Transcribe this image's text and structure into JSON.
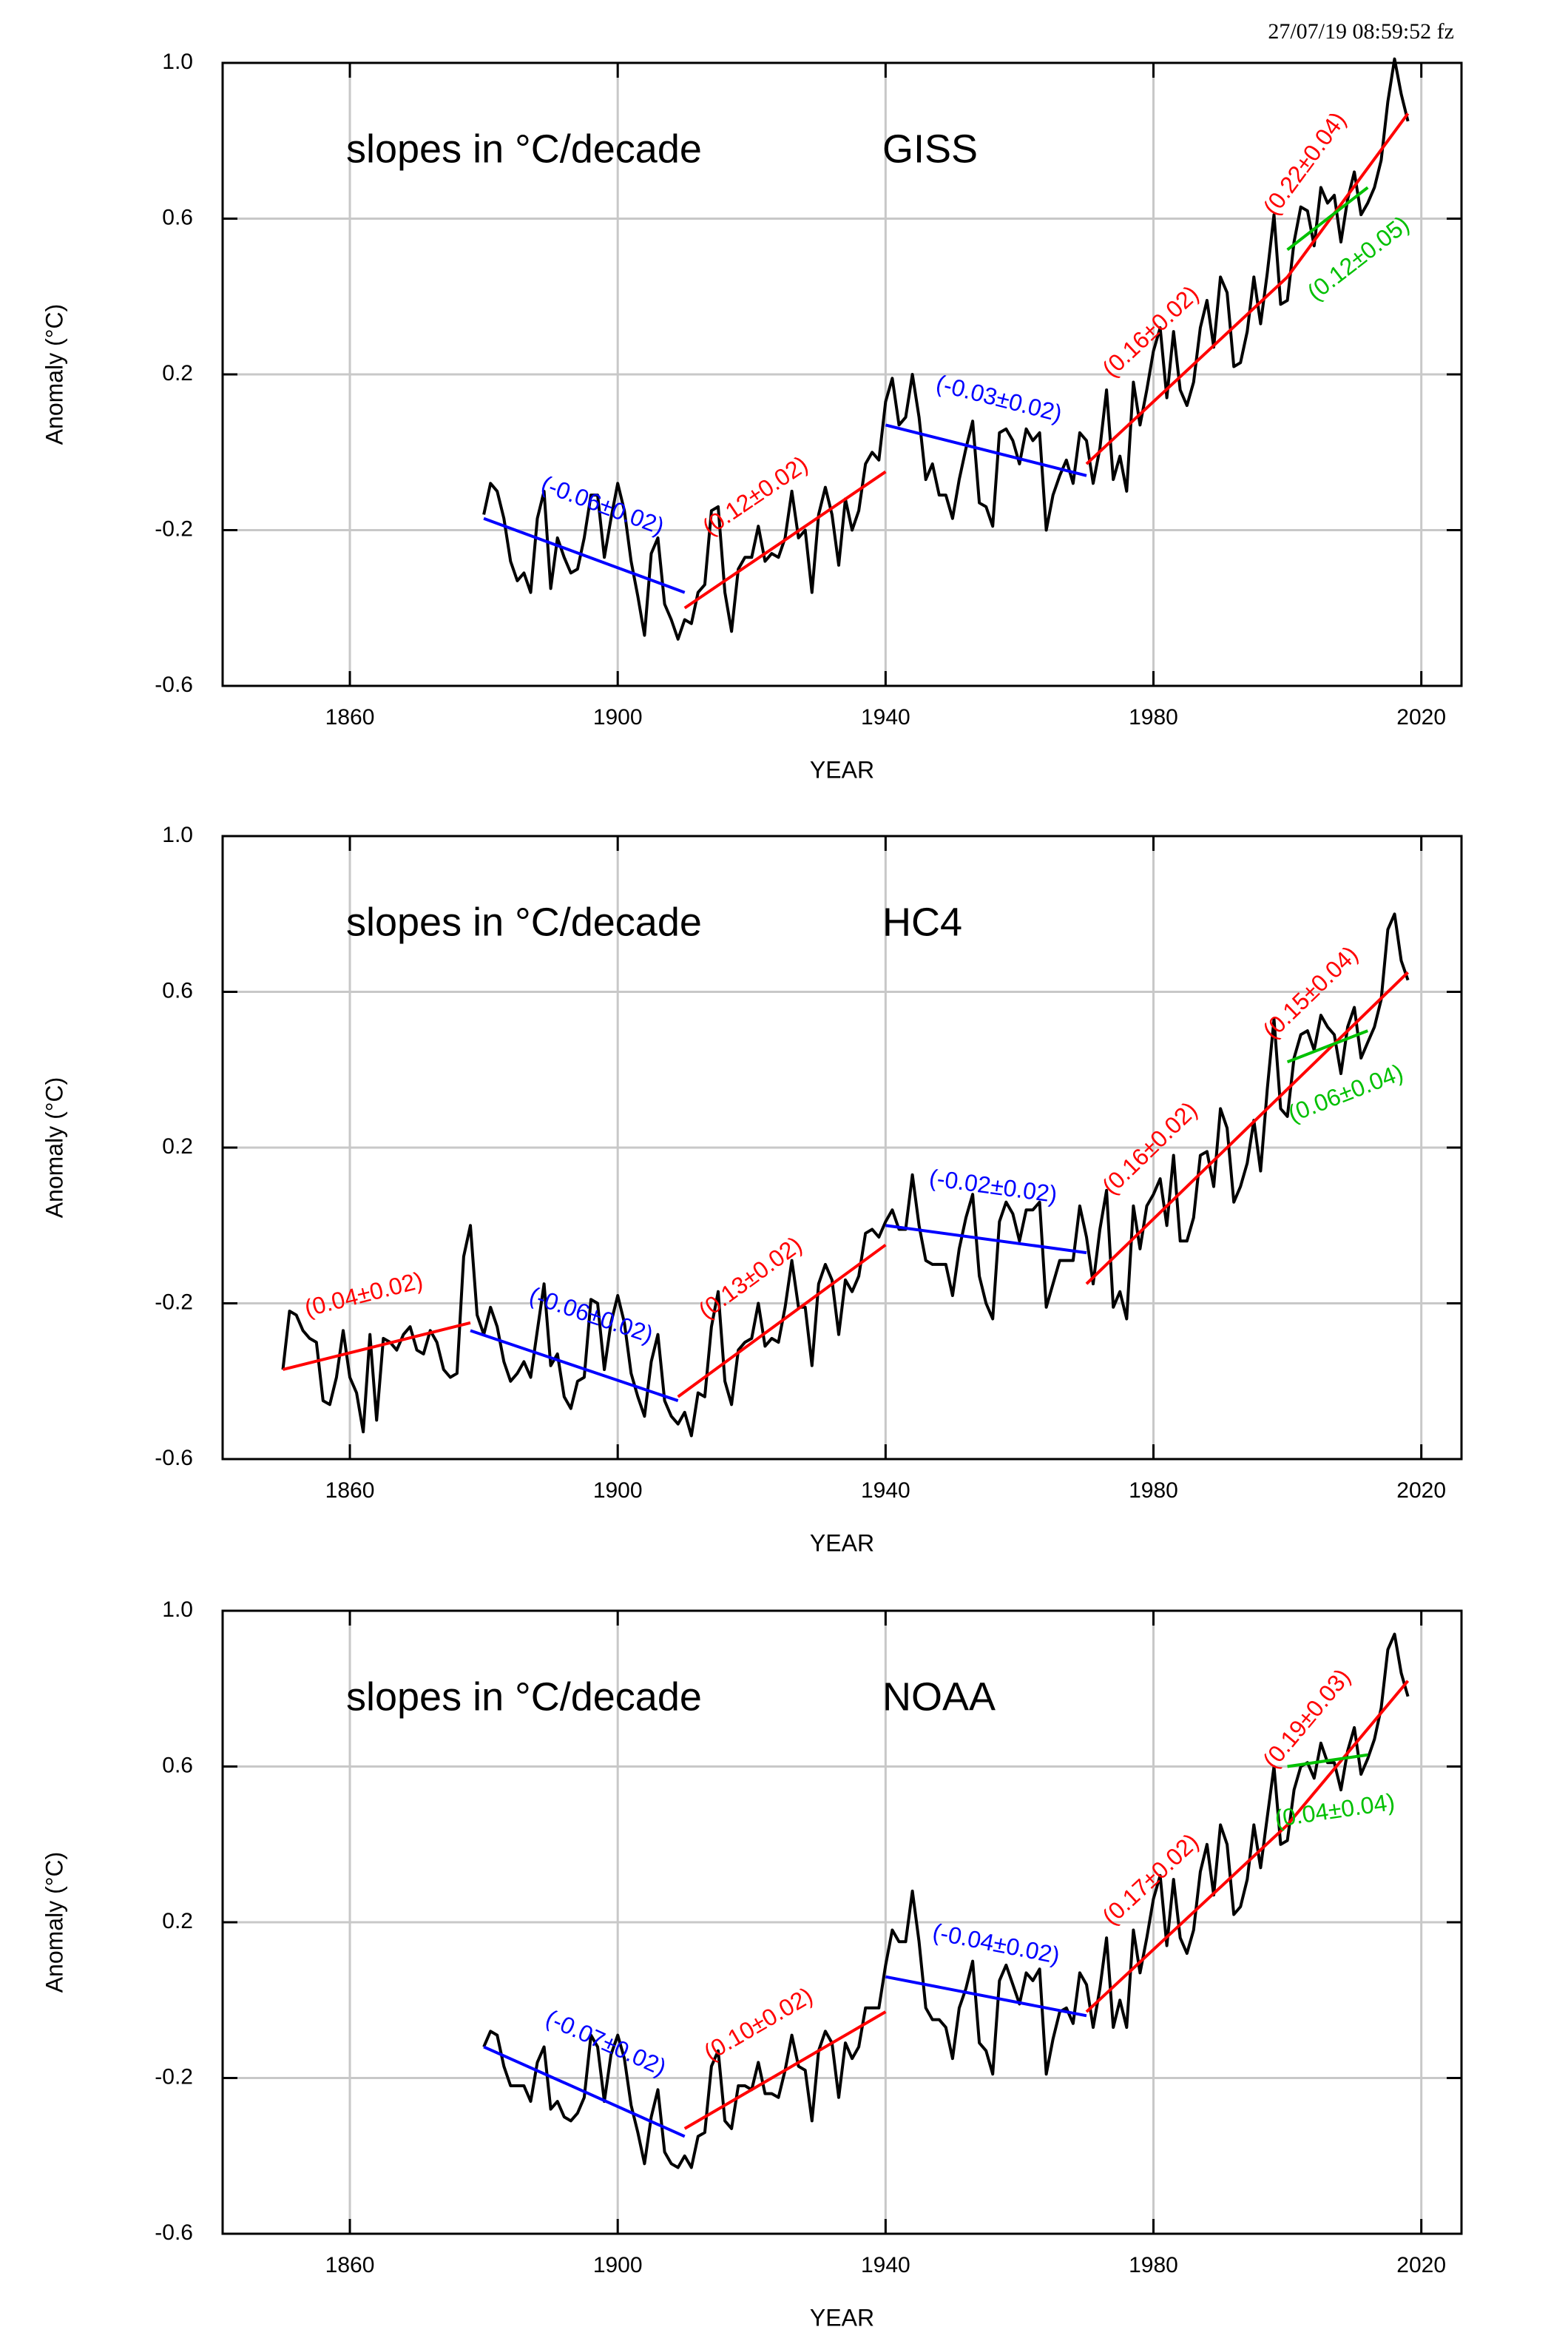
{
  "timestamp": "27/07/19  08:59:52 fz",
  "chart_data": [
    {
      "type": "line",
      "annotation": "slopes in °C/decade",
      "title": "GISS",
      "xlabel": "YEAR",
      "ylabel": "Anomaly (°C)",
      "xlim": [
        1841,
        2026
      ],
      "ylim": [
        -0.6,
        1.0
      ],
      "xticks": [
        1860,
        1900,
        1940,
        1980,
        2020
      ],
      "yticks": [
        -0.6,
        -0.2,
        0.2,
        0.6,
        {
          "value": 1,
          "label": "1.0"
        }
      ],
      "grid": true,
      "color": "#000000",
      "x": [
        1880,
        1881,
        1882,
        1883,
        1884,
        1885,
        1886,
        1887,
        1888,
        1889,
        1890,
        1891,
        1892,
        1893,
        1894,
        1895,
        1896,
        1897,
        1898,
        1899,
        1900,
        1901,
        1902,
        1903,
        1904,
        1905,
        1906,
        1907,
        1908,
        1909,
        1910,
        1911,
        1912,
        1913,
        1914,
        1915,
        1916,
        1917,
        1918,
        1919,
        1920,
        1921,
        1922,
        1923,
        1924,
        1925,
        1926,
        1927,
        1928,
        1929,
        1930,
        1931,
        1932,
        1933,
        1934,
        1935,
        1936,
        1937,
        1938,
        1939,
        1940,
        1941,
        1942,
        1943,
        1944,
        1945,
        1946,
        1947,
        1948,
        1949,
        1950,
        1951,
        1952,
        1953,
        1954,
        1955,
        1956,
        1957,
        1958,
        1959,
        1960,
        1961,
        1962,
        1963,
        1964,
        1965,
        1966,
        1967,
        1968,
        1969,
        1970,
        1971,
        1972,
        1973,
        1974,
        1975,
        1976,
        1977,
        1978,
        1979,
        1980,
        1981,
        1982,
        1983,
        1984,
        1985,
        1986,
        1987,
        1988,
        1989,
        1990,
        1991,
        1992,
        1993,
        1994,
        1995,
        1996,
        1997,
        1998,
        1999,
        2000,
        2001,
        2002,
        2003,
        2004,
        2005,
        2006,
        2007,
        2008,
        2009,
        2010,
        2011,
        2012,
        2013,
        2014,
        2015,
        2016,
        2017,
        2018
      ],
      "values": [
        -0.16,
        -0.08,
        -0.1,
        -0.17,
        -0.28,
        -0.33,
        -0.31,
        -0.36,
        -0.17,
        -0.1,
        -0.35,
        -0.22,
        -0.27,
        -0.31,
        -0.3,
        -0.22,
        -0.11,
        -0.11,
        -0.27,
        -0.17,
        -0.08,
        -0.15,
        -0.28,
        -0.37,
        -0.47,
        -0.26,
        -0.22,
        -0.39,
        -0.43,
        -0.48,
        -0.43,
        -0.44,
        -0.36,
        -0.34,
        -0.15,
        -0.14,
        -0.36,
        -0.46,
        -0.3,
        -0.27,
        -0.27,
        -0.19,
        -0.28,
        -0.26,
        -0.27,
        -0.22,
        -0.1,
        -0.22,
        -0.2,
        -0.36,
        -0.16,
        -0.09,
        -0.16,
        -0.29,
        -0.12,
        -0.2,
        -0.15,
        -0.03,
        0.0,
        -0.02,
        0.13,
        0.19,
        0.07,
        0.09,
        0.2,
        0.09,
        -0.07,
        -0.03,
        -0.11,
        -0.11,
        -0.17,
        -0.07,
        0.01,
        0.08,
        -0.13,
        -0.14,
        -0.19,
        0.05,
        0.06,
        0.03,
        -0.03,
        0.06,
        0.03,
        0.05,
        -0.2,
        -0.11,
        -0.06,
        -0.02,
        -0.08,
        0.05,
        0.03,
        -0.08,
        0.01,
        0.16,
        -0.07,
        -0.01,
        -0.1,
        0.18,
        0.07,
        0.16,
        0.26,
        0.32,
        0.14,
        0.31,
        0.16,
        0.12,
        0.18,
        0.32,
        0.39,
        0.27,
        0.45,
        0.41,
        0.22,
        0.23,
        0.31,
        0.45,
        0.33,
        0.46,
        0.61,
        0.38,
        0.39,
        0.54,
        0.63,
        0.62,
        0.53,
        0.68,
        0.64,
        0.66,
        0.54,
        0.65,
        0.72,
        0.61,
        0.64,
        0.68,
        0.75,
        0.9,
        1.01,
        0.92,
        0.85
      ],
      "trends": [
        {
          "label": "(-0.06±0.02)",
          "color": "#0000ff",
          "x": [
            1880,
            1910
          ],
          "values": [
            -0.17,
            -0.36
          ]
        },
        {
          "label": "(0.12±0.02)",
          "color": "#ff0000",
          "x": [
            1910,
            1940
          ],
          "values": [
            -0.4,
            -0.05
          ]
        },
        {
          "label": "(-0.03±0.02)",
          "color": "#0000ff",
          "x": [
            1940,
            1970
          ],
          "values": [
            0.07,
            -0.06
          ]
        },
        {
          "label": "(0.16±0.02)",
          "color": "#ff0000",
          "x": [
            1970,
            2000
          ],
          "values": [
            -0.03,
            0.45
          ]
        },
        {
          "label": "(0.22±0.04)",
          "color": "#ff0000",
          "x": [
            2000,
            2018
          ],
          "values": [
            0.45,
            0.87
          ]
        },
        {
          "label": "(0.12±0.05)",
          "color": "#00c000",
          "x": [
            2000,
            2012
          ],
          "values": [
            0.52,
            0.68
          ]
        }
      ]
    },
    {
      "type": "line",
      "annotation": "slopes in °C/decade",
      "title": "HC4",
      "xlabel": "YEAR",
      "ylabel": "Anomaly (°C)",
      "xlim": [
        1841,
        2026
      ],
      "ylim": [
        -0.6,
        1.0
      ],
      "xticks": [
        1860,
        1900,
        1940,
        1980,
        2020
      ],
      "yticks": [
        -0.6,
        -0.2,
        0.2,
        0.6,
        {
          "value": 1,
          "label": "1.0"
        }
      ],
      "grid": true,
      "color": "#000000",
      "x": [
        1850,
        1851,
        1852,
        1853,
        1854,
        1855,
        1856,
        1857,
        1858,
        1859,
        1860,
        1861,
        1862,
        1863,
        1864,
        1865,
        1866,
        1867,
        1868,
        1869,
        1870,
        1871,
        1872,
        1873,
        1874,
        1875,
        1876,
        1877,
        1878,
        1879,
        1880,
        1881,
        1882,
        1883,
        1884,
        1885,
        1886,
        1887,
        1888,
        1889,
        1890,
        1891,
        1892,
        1893,
        1894,
        1895,
        1896,
        1897,
        1898,
        1899,
        1900,
        1901,
        1902,
        1903,
        1904,
        1905,
        1906,
        1907,
        1908,
        1909,
        1910,
        1911,
        1912,
        1913,
        1914,
        1915,
        1916,
        1917,
        1918,
        1919,
        1920,
        1921,
        1922,
        1923,
        1924,
        1925,
        1926,
        1927,
        1928,
        1929,
        1930,
        1931,
        1932,
        1933,
        1934,
        1935,
        1936,
        1937,
        1938,
        1939,
        1940,
        1941,
        1942,
        1943,
        1944,
        1945,
        1946,
        1947,
        1948,
        1949,
        1950,
        1951,
        1952,
        1953,
        1954,
        1955,
        1956,
        1957,
        1958,
        1959,
        1960,
        1961,
        1962,
        1963,
        1964,
        1965,
        1966,
        1967,
        1968,
        1969,
        1970,
        1971,
        1972,
        1973,
        1974,
        1975,
        1976,
        1977,
        1978,
        1979,
        1980,
        1981,
        1982,
        1983,
        1984,
        1985,
        1986,
        1987,
        1988,
        1989,
        1990,
        1991,
        1992,
        1993,
        1994,
        1995,
        1996,
        1997,
        1998,
        1999,
        2000,
        2001,
        2002,
        2003,
        2004,
        2005,
        2006,
        2007,
        2008,
        2009,
        2010,
        2011,
        2012,
        2013,
        2014,
        2015,
        2016,
        2017,
        2018
      ],
      "values": [
        -0.37,
        -0.22,
        -0.23,
        -0.27,
        -0.29,
        -0.3,
        -0.45,
        -0.46,
        -0.39,
        -0.27,
        -0.39,
        -0.43,
        -0.53,
        -0.28,
        -0.5,
        -0.29,
        -0.3,
        -0.32,
        -0.28,
        -0.26,
        -0.32,
        -0.33,
        -0.27,
        -0.3,
        -0.37,
        -0.39,
        -0.38,
        -0.08,
        0.0,
        -0.23,
        -0.28,
        -0.21,
        -0.26,
        -0.35,
        -0.4,
        -0.38,
        -0.35,
        -0.39,
        -0.27,
        -0.15,
        -0.36,
        -0.33,
        -0.44,
        -0.47,
        -0.4,
        -0.39,
        -0.19,
        -0.2,
        -0.37,
        -0.25,
        -0.18,
        -0.25,
        -0.38,
        -0.44,
        -0.49,
        -0.35,
        -0.28,
        -0.45,
        -0.49,
        -0.51,
        -0.48,
        -0.54,
        -0.43,
        -0.44,
        -0.26,
        -0.17,
        -0.4,
        -0.46,
        -0.32,
        -0.3,
        -0.29,
        -0.2,
        -0.31,
        -0.29,
        -0.3,
        -0.21,
        -0.09,
        -0.21,
        -0.21,
        -0.36,
        -0.15,
        -0.1,
        -0.14,
        -0.28,
        -0.14,
        -0.17,
        -0.13,
        -0.02,
        -0.01,
        -0.03,
        0.01,
        0.04,
        -0.01,
        -0.01,
        0.13,
        0.0,
        -0.09,
        -0.1,
        -0.1,
        -0.1,
        -0.18,
        -0.06,
        0.02,
        0.08,
        -0.13,
        -0.2,
        -0.24,
        0.01,
        0.06,
        0.03,
        -0.04,
        0.04,
        0.04,
        0.06,
        -0.21,
        -0.15,
        -0.09,
        -0.09,
        -0.09,
        0.05,
        -0.03,
        -0.15,
        -0.01,
        0.09,
        -0.21,
        -0.17,
        -0.24,
        0.05,
        -0.06,
        0.05,
        0.08,
        0.12,
        0.0,
        0.18,
        -0.04,
        -0.04,
        0.02,
        0.18,
        0.19,
        0.1,
        0.3,
        0.25,
        0.06,
        0.1,
        0.16,
        0.27,
        0.14,
        0.35,
        0.53,
        0.3,
        0.28,
        0.43,
        0.49,
        0.5,
        0.45,
        0.54,
        0.51,
        0.49,
        0.39,
        0.51,
        0.56,
        0.43,
        0.47,
        0.51,
        0.58,
        0.76,
        0.8,
        0.68,
        0.63
      ],
      "trends": [
        {
          "label": "(0.04±0.02)",
          "color": "#ff0000",
          "x": [
            1850,
            1878
          ],
          "values": [
            -0.37,
            -0.25
          ]
        },
        {
          "label": "(-0.06±0.02)",
          "color": "#0000ff",
          "x": [
            1878,
            1909
          ],
          "values": [
            -0.27,
            -0.45
          ]
        },
        {
          "label": "(0.13±0.02)",
          "color": "#ff0000",
          "x": [
            1909,
            1940
          ],
          "values": [
            -0.44,
            -0.05
          ]
        },
        {
          "label": "(-0.02±0.02)",
          "color": "#0000ff",
          "x": [
            1940,
            1970
          ],
          "values": [
            0.0,
            -0.07
          ]
        },
        {
          "label": "(0.16±0.02)",
          "color": "#ff0000",
          "x": [
            1970,
            2000
          ],
          "values": [
            -0.15,
            0.35
          ]
        },
        {
          "label": "(0.15±0.04)",
          "color": "#ff0000",
          "x": [
            2000,
            2018
          ],
          "values": [
            0.35,
            0.65
          ]
        },
        {
          "label": "(0.06±0.04)",
          "color": "#00c000",
          "x": [
            2000,
            2012
          ],
          "values": [
            0.42,
            0.5
          ]
        }
      ]
    },
    {
      "type": "line",
      "annotation": "slopes in °C/decade",
      "title": "NOAA",
      "xlabel": "YEAR",
      "ylabel": "Anomaly (°C)",
      "xlim": [
        1841,
        2026
      ],
      "ylim": [
        -0.6,
        1.0
      ],
      "xticks": [
        1860,
        1900,
        1940,
        1980,
        2020
      ],
      "yticks": [
        -0.6,
        -0.2,
        0.2,
        0.6,
        {
          "value": 1,
          "label": "1.0"
        }
      ],
      "grid": true,
      "color": "#000000",
      "x": [
        1880,
        1881,
        1882,
        1883,
        1884,
        1885,
        1886,
        1887,
        1888,
        1889,
        1890,
        1891,
        1892,
        1893,
        1894,
        1895,
        1896,
        1897,
        1898,
        1899,
        1900,
        1901,
        1902,
        1903,
        1904,
        1905,
        1906,
        1907,
        1908,
        1909,
        1910,
        1911,
        1912,
        1913,
        1914,
        1915,
        1916,
        1917,
        1918,
        1919,
        1920,
        1921,
        1922,
        1923,
        1924,
        1925,
        1926,
        1927,
        1928,
        1929,
        1930,
        1931,
        1932,
        1933,
        1934,
        1935,
        1936,
        1937,
        1938,
        1939,
        1940,
        1941,
        1942,
        1943,
        1944,
        1945,
        1946,
        1947,
        1948,
        1949,
        1950,
        1951,
        1952,
        1953,
        1954,
        1955,
        1956,
        1957,
        1958,
        1959,
        1960,
        1961,
        1962,
        1963,
        1964,
        1965,
        1966,
        1967,
        1968,
        1969,
        1970,
        1971,
        1972,
        1973,
        1974,
        1975,
        1976,
        1977,
        1978,
        1979,
        1980,
        1981,
        1982,
        1983,
        1984,
        1985,
        1986,
        1987,
        1988,
        1989,
        1990,
        1991,
        1992,
        1993,
        1994,
        1995,
        1996,
        1997,
        1998,
        1999,
        2000,
        2001,
        2002,
        2003,
        2004,
        2005,
        2006,
        2007,
        2008,
        2009,
        2010,
        2011,
        2012,
        2013,
        2014,
        2015,
        2016,
        2017,
        2018
      ],
      "values": [
        -0.12,
        -0.08,
        -0.09,
        -0.17,
        -0.22,
        -0.22,
        -0.22,
        -0.26,
        -0.16,
        -0.12,
        -0.28,
        -0.26,
        -0.3,
        -0.31,
        -0.29,
        -0.25,
        -0.09,
        -0.12,
        -0.26,
        -0.14,
        -0.09,
        -0.15,
        -0.27,
        -0.34,
        -0.42,
        -0.3,
        -0.23,
        -0.39,
        -0.42,
        -0.43,
        -0.4,
        -0.43,
        -0.35,
        -0.34,
        -0.17,
        -0.13,
        -0.31,
        -0.33,
        -0.22,
        -0.22,
        -0.23,
        -0.16,
        -0.24,
        -0.24,
        -0.25,
        -0.18,
        -0.09,
        -0.17,
        -0.18,
        -0.31,
        -0.13,
        -0.08,
        -0.11,
        -0.25,
        -0.11,
        -0.15,
        -0.12,
        -0.02,
        -0.02,
        -0.02,
        0.09,
        0.18,
        0.15,
        0.15,
        0.28,
        0.15,
        -0.02,
        -0.05,
        -0.05,
        -0.07,
        -0.15,
        -0.02,
        0.03,
        0.1,
        -0.11,
        -0.13,
        -0.19,
        0.05,
        0.09,
        0.04,
        -0.01,
        0.07,
        0.05,
        0.08,
        -0.19,
        -0.1,
        -0.03,
        -0.02,
        -0.06,
        0.07,
        0.04,
        -0.07,
        0.03,
        0.16,
        -0.07,
        0.0,
        -0.07,
        0.18,
        0.07,
        0.16,
        0.26,
        0.32,
        0.14,
        0.31,
        0.16,
        0.12,
        0.18,
        0.33,
        0.4,
        0.27,
        0.45,
        0.4,
        0.22,
        0.24,
        0.31,
        0.45,
        0.34,
        0.47,
        0.6,
        0.4,
        0.41,
        0.54,
        0.6,
        0.61,
        0.57,
        0.66,
        0.61,
        0.61,
        0.54,
        0.64,
        0.7,
        0.58,
        0.62,
        0.67,
        0.75,
        0.9,
        0.94,
        0.84,
        0.78
      ],
      "trends": [
        {
          "label": "(-0.07±0.02)",
          "color": "#0000ff",
          "x": [
            1880,
            1910
          ],
          "values": [
            -0.12,
            -0.35
          ]
        },
        {
          "label": "(0.10±0.02)",
          "color": "#ff0000",
          "x": [
            1910,
            1940
          ],
          "values": [
            -0.33,
            -0.03
          ]
        },
        {
          "label": "(-0.04±0.02)",
          "color": "#0000ff",
          "x": [
            1940,
            1970
          ],
          "values": [
            0.06,
            -0.04
          ]
        },
        {
          "label": "(0.17±0.02)",
          "color": "#ff0000",
          "x": [
            1970,
            2000
          ],
          "values": [
            -0.03,
            0.45
          ]
        },
        {
          "label": "(0.19±0.03)",
          "color": "#ff0000",
          "x": [
            2000,
            2018
          ],
          "values": [
            0.45,
            0.82
          ]
        },
        {
          "label": "(0.04±0.04)",
          "color": "#00c000",
          "x": [
            2000,
            2012
          ],
          "values": [
            0.6,
            0.63
          ]
        }
      ]
    }
  ]
}
